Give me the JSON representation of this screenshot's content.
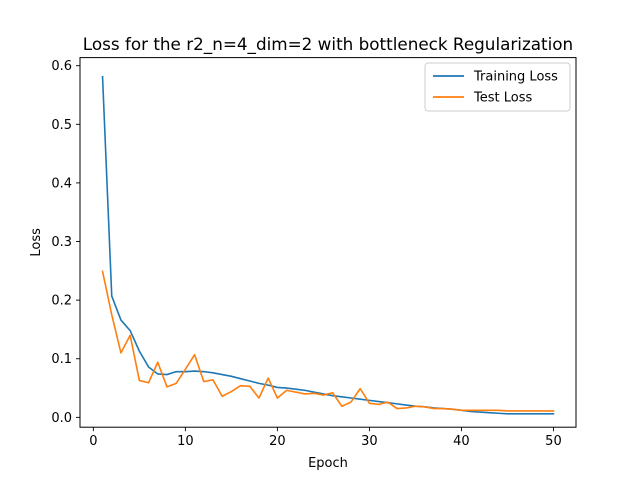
{
  "chart_data": {
    "type": "line",
    "title": "Loss for the r2_n=4_dim=2 with bottleneck Regularization",
    "xlabel": "Epoch",
    "ylabel": "Loss",
    "xlim": [
      -1.45,
      52.45
    ],
    "ylim": [
      -0.0168,
      0.6138
    ],
    "xticks": [
      0,
      10,
      20,
      30,
      40,
      50
    ],
    "yticks": [
      0.0,
      0.1,
      0.2,
      0.3,
      0.4,
      0.5,
      0.6
    ],
    "xtick_labels": [
      "0",
      "10",
      "20",
      "30",
      "40",
      "50"
    ],
    "ytick_labels": [
      "0.0",
      "0.1",
      "0.2",
      "0.3",
      "0.4",
      "0.5",
      "0.6"
    ],
    "grid": false,
    "legend_position": "upper right",
    "x": [
      1,
      2,
      3,
      4,
      5,
      6,
      7,
      8,
      9,
      10,
      11,
      12,
      13,
      14,
      15,
      16,
      17,
      18,
      19,
      20,
      21,
      22,
      23,
      24,
      25,
      26,
      27,
      28,
      29,
      30,
      31,
      32,
      33,
      34,
      35,
      36,
      37,
      38,
      39,
      40,
      41,
      42,
      43,
      44,
      45,
      46,
      47,
      48,
      49,
      50
    ],
    "series": [
      {
        "name": "Training Loss",
        "color": "#1f77b4",
        "values": [
          0.581,
          0.207,
          0.166,
          0.148,
          0.113,
          0.086,
          0.074,
          0.073,
          0.078,
          0.078,
          0.079,
          0.078,
          0.076,
          0.073,
          0.07,
          0.066,
          0.062,
          0.058,
          0.055,
          0.051,
          0.05,
          0.048,
          0.046,
          0.043,
          0.04,
          0.037,
          0.035,
          0.033,
          0.031,
          0.029,
          0.027,
          0.025,
          0.023,
          0.021,
          0.019,
          0.018,
          0.016,
          0.015,
          0.014,
          0.012,
          0.01,
          0.009,
          0.008,
          0.007,
          0.006,
          0.006,
          0.006,
          0.006,
          0.006,
          0.006
        ]
      },
      {
        "name": "Test Loss",
        "color": "#ff7f0e",
        "values": [
          0.249,
          0.175,
          0.11,
          0.14,
          0.063,
          0.059,
          0.094,
          0.052,
          0.058,
          0.082,
          0.107,
          0.061,
          0.064,
          0.036,
          0.044,
          0.054,
          0.053,
          0.033,
          0.067,
          0.033,
          0.046,
          0.043,
          0.04,
          0.041,
          0.038,
          0.042,
          0.019,
          0.026,
          0.049,
          0.024,
          0.022,
          0.026,
          0.015,
          0.016,
          0.019,
          0.018,
          0.015,
          0.015,
          0.014,
          0.012,
          0.012,
          0.012,
          0.012,
          0.012,
          0.011,
          0.011,
          0.011,
          0.011,
          0.011,
          0.011
        ]
      }
    ]
  }
}
